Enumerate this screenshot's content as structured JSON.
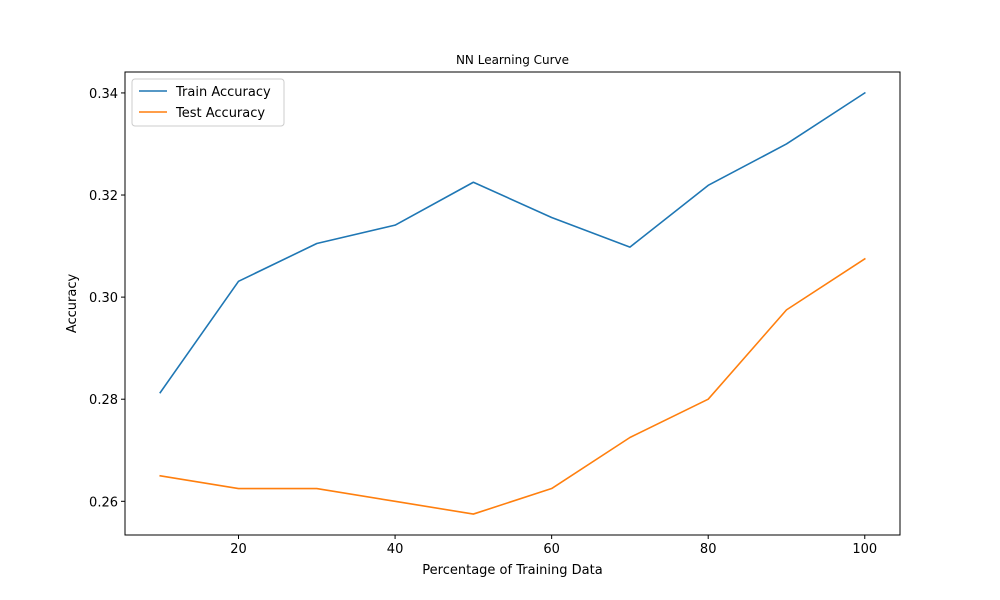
{
  "chart_data": {
    "type": "line",
    "title": "NN Learning Curve",
    "xlabel": "Percentage of Training Data",
    "ylabel": "Accuracy",
    "xlim": [
      5.5,
      104.5
    ],
    "ylim": [
      0.2534,
      0.3441
    ],
    "x_ticks": [
      20,
      40,
      60,
      80,
      100
    ],
    "x_tick_labels": [
      "20",
      "40",
      "60",
      "80",
      "100"
    ],
    "y_ticks": [
      0.26,
      0.28,
      0.3,
      0.32,
      0.34
    ],
    "y_tick_labels": [
      "0.26",
      "0.28",
      "0.30",
      "0.32",
      "0.34"
    ],
    "x": [
      10,
      20,
      30,
      40,
      50,
      60,
      70,
      80,
      90,
      100
    ],
    "series": [
      {
        "name": "Train Accuracy",
        "color": "#1f77b4",
        "values": [
          0.2813,
          0.3031,
          0.3105,
          0.3141,
          0.3225,
          0.3156,
          0.3098,
          0.3219,
          0.33,
          0.34
        ]
      },
      {
        "name": "Test Accuracy",
        "color": "#ff7f0e",
        "values": [
          0.265,
          0.2625,
          0.2625,
          0.26,
          0.2575,
          0.2625,
          0.2725,
          0.28,
          0.2975,
          0.3075
        ]
      }
    ],
    "grid": false,
    "legend_position": "upper-left"
  }
}
